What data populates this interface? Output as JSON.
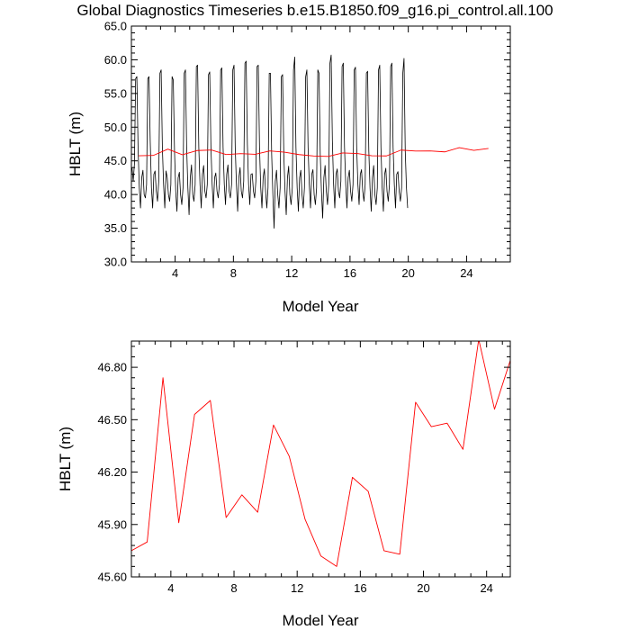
{
  "figure_title": "Global Diagnostics Timeseries b.e15.B1850.f09_g16.pi_control.all.100",
  "colors": {
    "annual": "#ff0000",
    "monthly": "#000000",
    "frame": "#000000",
    "background": "#ffffff"
  },
  "chart_data": [
    {
      "type": "line",
      "title": "Global Diagnostics Timeseries b.e15.B1850.f09_g16.pi_control.all.100",
      "xlabel": "Model Year",
      "ylabel": "HBLT (m)",
      "xlim": [
        1,
        27
      ],
      "ylim": [
        30.0,
        65.0
      ],
      "xticks": [
        4,
        8,
        12,
        16,
        20,
        24
      ],
      "yticks": [
        30.0,
        35.0,
        40.0,
        45.0,
        50.0,
        55.0,
        60.0,
        65.0
      ],
      "ytick_labels": [
        "30.0",
        "35.0",
        "40.0",
        "45.0",
        "50.0",
        "55.0",
        "60.0",
        "65.0"
      ],
      "legend": "none",
      "grid": false,
      "series": [
        {
          "kind": "monthly",
          "color": "#000000",
          "x_start": 1.0417,
          "x_step": 0.08333,
          "values": [
            44.0,
            42.0,
            44.5,
            57.2,
            57.5,
            47.0,
            41.0,
            38.0,
            42.5,
            43.6,
            40.0,
            39.5,
            41.5,
            57.2,
            57.5,
            48.0,
            41.0,
            38.0,
            43.0,
            43.5,
            40.5,
            39.0,
            42.0,
            58.0,
            58.5,
            47.0,
            41.5,
            38.0,
            43.5,
            42.5,
            40.0,
            39.0,
            41.5,
            57.5,
            57.0,
            46.5,
            40.5,
            37.5,
            42.5,
            43.3,
            40.0,
            38.5,
            41.0,
            58.0,
            58.5,
            47.0,
            41.0,
            37.0,
            42.5,
            44.4,
            40.0,
            39.0,
            41.5,
            59.0,
            59.2,
            47.0,
            41.5,
            38.0,
            43.0,
            44.3,
            40.5,
            39.5,
            41.5,
            57.8,
            58.2,
            47.0,
            41.5,
            38.0,
            42.5,
            43.2,
            40.5,
            39.5,
            41.5,
            58.5,
            58.8,
            47.0,
            41.5,
            38.5,
            43.0,
            44.4,
            40.5,
            39.5,
            41.5,
            58.5,
            59.2,
            47.0,
            41.5,
            37.5,
            42.5,
            44.0,
            40.5,
            39.5,
            42.0,
            59.5,
            59.8,
            47.5,
            41.5,
            38.5,
            43.0,
            43.1,
            40.5,
            39.5,
            42.0,
            59.0,
            59.2,
            47.0,
            41.0,
            38.0,
            42.5,
            43.8,
            40.5,
            38.0,
            41.0,
            58.0,
            58.0,
            46.0,
            40.0,
            35.0,
            42.0,
            43.6,
            40.0,
            38.0,
            41.0,
            57.5,
            57.8,
            46.0,
            40.5,
            37.0,
            42.5,
            44.2,
            40.0,
            38.5,
            41.0,
            58.5,
            60.4,
            47.0,
            41.0,
            37.5,
            42.5,
            43.6,
            40.0,
            38.0,
            41.0,
            57.5,
            58.5,
            47.0,
            41.5,
            38.0,
            43.0,
            43.7,
            40.0,
            38.5,
            41.0,
            58.5,
            58.0,
            46.0,
            40.5,
            36.5,
            42.5,
            44.3,
            40.5,
            38.5,
            41.5,
            59.5,
            60.7,
            48.0,
            41.5,
            38.0,
            43.0,
            43.8,
            40.5,
            39.5,
            42.0,
            59.0,
            59.5,
            47.0,
            41.5,
            38.0,
            42.5,
            43.6,
            40.5,
            39.0,
            41.5,
            58.5,
            58.9,
            47.0,
            41.5,
            38.5,
            43.0,
            43.7,
            40.5,
            39.0,
            41.5,
            58.0,
            58.3,
            46.5,
            41.0,
            37.5,
            42.5,
            44.3,
            40.0,
            38.5,
            41.0,
            58.5,
            59.2,
            47.0,
            41.0,
            37.5,
            43.0,
            43.9,
            40.5,
            39.0,
            41.5,
            59.0,
            59.5,
            47.0,
            41.5,
            38.0,
            43.0,
            43.4,
            40.5,
            39.0,
            41.0,
            58.0,
            60.2,
            46.5,
            41.0,
            38.0
          ]
        },
        {
          "kind": "annual",
          "color": "#ff0000",
          "x": [
            1.5,
            2.5,
            3.5,
            4.5,
            5.5,
            6.5,
            7.5,
            8.5,
            9.5,
            10.5,
            11.5,
            12.5,
            13.5,
            14.5,
            15.5,
            16.5,
            17.5,
            18.5,
            19.5,
            20.5,
            21.5,
            22.5,
            23.5,
            24.5,
            25.5
          ],
          "values": [
            45.75,
            45.8,
            46.74,
            45.91,
            46.53,
            46.61,
            45.94,
            46.07,
            45.97,
            46.47,
            46.29,
            45.93,
            45.72,
            45.66,
            46.17,
            46.09,
            45.75,
            45.73,
            46.6,
            46.46,
            46.48,
            46.33,
            46.96,
            46.56,
            46.84
          ]
        }
      ]
    },
    {
      "type": "line",
      "xlabel": "Model Year",
      "ylabel": "HBLT (m)",
      "xlim": [
        1.5,
        25.5
      ],
      "ylim": [
        45.6,
        46.95
      ],
      "xticks": [
        4,
        8,
        12,
        16,
        20,
        24
      ],
      "yticks": [
        45.6,
        45.9,
        46.2,
        46.5,
        46.8
      ],
      "ytick_labels": [
        "45.60",
        "45.90",
        "46.20",
        "46.50",
        "46.80"
      ],
      "legend": "none",
      "grid": false,
      "series": [
        {
          "kind": "annual",
          "color": "#ff0000",
          "x": [
            1.5,
            2.5,
            3.5,
            4.5,
            5.5,
            6.5,
            7.5,
            8.5,
            9.5,
            10.5,
            11.5,
            12.5,
            13.5,
            14.5,
            15.5,
            16.5,
            17.5,
            18.5,
            19.5,
            20.5,
            21.5,
            22.5,
            23.5,
            24.5,
            25.5
          ],
          "values": [
            45.75,
            45.8,
            46.74,
            45.91,
            46.53,
            46.61,
            45.94,
            46.07,
            45.97,
            46.47,
            46.29,
            45.93,
            45.72,
            45.66,
            46.17,
            46.09,
            45.75,
            45.73,
            46.6,
            46.46,
            46.48,
            46.33,
            46.96,
            46.56,
            46.84
          ]
        }
      ]
    }
  ]
}
